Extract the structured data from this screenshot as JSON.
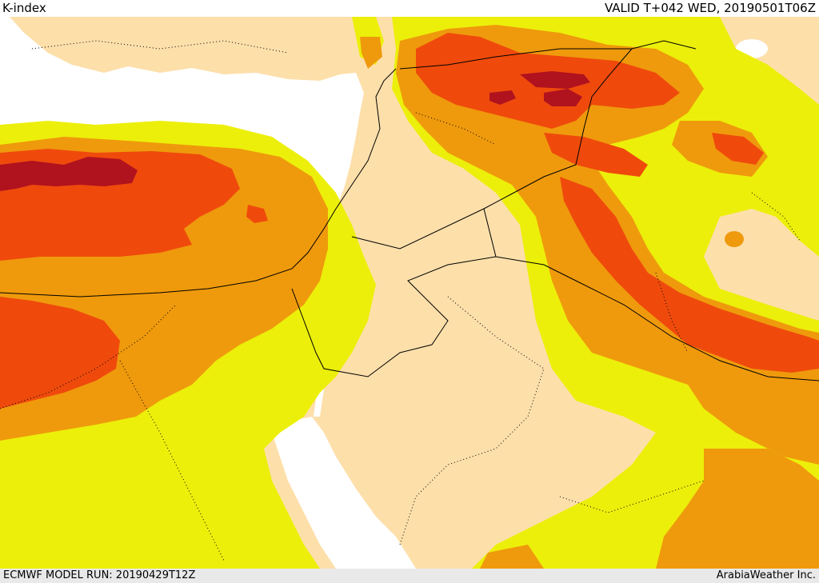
{
  "header": {
    "title": "K-index",
    "valid": "VALID T+042 WED, 20190501T06Z"
  },
  "footer": {
    "model_run": "ECMWF MODEL RUN: 20190429T12Z",
    "credit": "ArabiaWeather Inc."
  },
  "map": {
    "colors": {
      "land": "#fddfaa",
      "sea": "#ffffff",
      "level1": "#ecef0a",
      "level2": "#ef9a0c",
      "level3": "#ef4a0c",
      "level4": "#b0121e"
    }
  }
}
